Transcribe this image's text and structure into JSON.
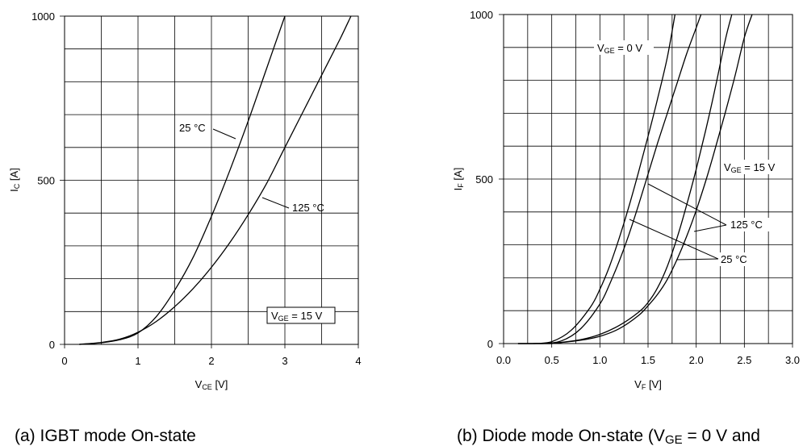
{
  "chart_data": [
    {
      "type": "line",
      "panel": "a",
      "caption": "(a) IGBT mode On-state",
      "xlabel": {
        "main": "V",
        "sub": "CE",
        "suffix": " [V]"
      },
      "ylabel": {
        "main": "I",
        "sub": "C",
        "suffix": " [A]"
      },
      "xlim": [
        0,
        4
      ],
      "ylim": [
        0,
        1000
      ],
      "x_ticks": [
        "0",
        "1",
        "2",
        "3",
        "4"
      ],
      "y_ticks": [
        "0",
        "500",
        "1000"
      ],
      "grid": true,
      "annotations": [
        {
          "text": "25 °C"
        },
        {
          "text": "125 °C"
        },
        {
          "main": "V",
          "sub": "GE",
          "suffix": " = 15 V",
          "boxed": true
        }
      ],
      "series": [
        {
          "name": "25 °C",
          "x": [
            0.2,
            0.5,
            0.75,
            1.0,
            1.25,
            1.5,
            1.75,
            2.0,
            2.25,
            2.5,
            2.75,
            3.0
          ],
          "y": [
            0,
            5,
            14,
            35,
            85,
            165,
            265,
            390,
            530,
            680,
            840,
            1000
          ]
        },
        {
          "name": "125 °C",
          "x": [
            0.2,
            0.5,
            0.75,
            1.0,
            1.25,
            1.5,
            1.75,
            2.0,
            2.25,
            2.5,
            2.75,
            3.0,
            3.25,
            3.5,
            3.75,
            3.9
          ],
          "y": [
            0,
            6,
            16,
            37,
            70,
            115,
            170,
            235,
            310,
            395,
            490,
            600,
            710,
            820,
            930,
            1000
          ]
        }
      ]
    },
    {
      "type": "line",
      "panel": "b",
      "caption": {
        "main": "(b) Diode mode On-state (V",
        "sub": "GE",
        "suffix": " = 0 V and"
      },
      "xlabel": {
        "main": "V",
        "sub": "F",
        "suffix": " [V]"
      },
      "ylabel": {
        "main": "I",
        "sub": "F",
        "suffix": " [A]"
      },
      "xlim": [
        0,
        3
      ],
      "ylim": [
        0,
        1000
      ],
      "x_ticks": [
        "0.0",
        "0.5",
        "1.0",
        "1.5",
        "2.0",
        "2.5",
        "3.0"
      ],
      "y_ticks": [
        "0",
        "500",
        "1000"
      ],
      "grid": true,
      "annotations": [
        {
          "main": "V",
          "sub": "GE",
          "suffix": " = 0 V"
        },
        {
          "main": "V",
          "sub": "GE",
          "suffix": " = 15 V"
        },
        {
          "text": "125 °C"
        },
        {
          "text": "25 °C"
        }
      ],
      "series": [
        {
          "name": "V_GE = 0 V, 125 °C",
          "x": [
            0.3,
            0.5,
            0.7,
            0.9,
            1.0,
            1.1,
            1.2,
            1.3,
            1.4,
            1.5,
            1.6,
            1.7,
            1.78
          ],
          "y": [
            0,
            6,
            40,
            110,
            165,
            235,
            320,
            415,
            520,
            630,
            745,
            870,
            1000
          ]
        },
        {
          "name": "V_GE = 0 V, 25 °C",
          "x": [
            0.4,
            0.6,
            0.8,
            1.0,
            1.1,
            1.2,
            1.3,
            1.4,
            1.5,
            1.6,
            1.7,
            1.8,
            1.9,
            2.0,
            2.05
          ],
          "y": [
            0,
            8,
            45,
            120,
            180,
            250,
            330,
            420,
            515,
            610,
            700,
            790,
            880,
            960,
            1000
          ]
        },
        {
          "name": "V_GE = 15 V, 125 °C",
          "x": [
            0.5,
            0.8,
            1.0,
            1.2,
            1.4,
            1.5,
            1.6,
            1.7,
            1.8,
            1.9,
            2.0,
            2.1,
            2.2,
            2.3,
            2.37
          ],
          "y": [
            0,
            12,
            28,
            55,
            95,
            125,
            170,
            235,
            320,
            420,
            530,
            650,
            780,
            920,
            1000
          ]
        },
        {
          "name": "V_GE = 15 V, 25 °C",
          "x": [
            0.5,
            0.8,
            1.0,
            1.2,
            1.4,
            1.5,
            1.6,
            1.7,
            1.8,
            1.9,
            2.0,
            2.1,
            2.2,
            2.3,
            2.4,
            2.5,
            2.58
          ],
          "y": [
            0,
            10,
            22,
            45,
            85,
            115,
            150,
            195,
            255,
            325,
            405,
            495,
            595,
            700,
            810,
            930,
            1000
          ]
        }
      ]
    }
  ]
}
